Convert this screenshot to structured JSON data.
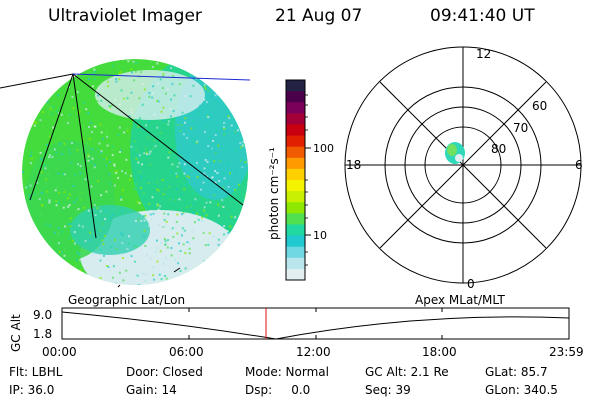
{
  "header": {
    "instrument": "Ultraviolet Imager",
    "date": "21 Aug 07",
    "time": "09:41:40 UT"
  },
  "colorbar": {
    "unit_label": "photon cm⁻²s⁻¹",
    "ticks": [
      "100",
      "10"
    ],
    "colors": [
      "#222244",
      "#4b004b",
      "#7a005a",
      "#a3003a",
      "#c80010",
      "#e02000",
      "#f05a00",
      "#ff9a00",
      "#ffd000",
      "#f4f400",
      "#c8f000",
      "#8ee800",
      "#50e050",
      "#20d8a0",
      "#20c8d0",
      "#70d8e0",
      "#b8e6ec",
      "#e2eef2"
    ]
  },
  "polar_plot": {
    "mlt_labels": {
      "top": "12",
      "left": "18",
      "right": "6",
      "bottom": "0"
    },
    "lat_labels": [
      "60",
      "70",
      "80"
    ]
  },
  "orbit_plot": {
    "left_title": "Geographic Lat/Lon",
    "right_title": "Apex MLat/MLT",
    "y_axis_label": "GC Alt",
    "y_ticks": [
      "9.0",
      "1.8"
    ],
    "x_ticks": [
      "00:00",
      "06:00",
      "12:00",
      "18:00",
      "23:59"
    ],
    "current_time_color": "#e01010"
  },
  "info": {
    "row1": [
      "Flt: LBHL",
      "Door: Closed",
      "Mode: Normal",
      "GC Alt: 2.1 Re",
      "GLat: 85.7"
    ],
    "row2": [
      "IP: 36.0",
      "Gain: 14",
      "Dsp:     0.0",
      "Seq: 39",
      "GLon: 340.5"
    ]
  }
}
